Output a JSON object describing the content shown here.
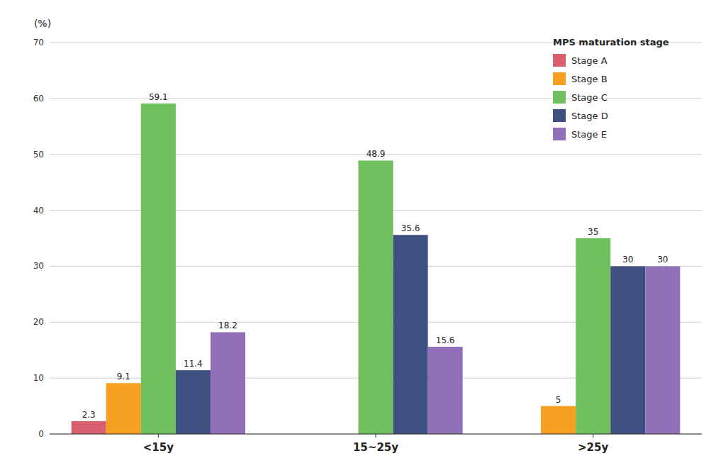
{
  "chart_data": {
    "type": "bar",
    "ylabel": "(%)",
    "legend_title": "MPS maturation stage",
    "categories": [
      "<15y",
      "15~25y",
      ">25y"
    ],
    "series": [
      {
        "name": "Stage A",
        "color": "#d75f6e",
        "values": [
          2.3,
          0,
          0
        ]
      },
      {
        "name": "Stage B",
        "color": "#f5a020",
        "values": [
          9.1,
          0,
          5
        ]
      },
      {
        "name": "Stage C",
        "color": "#70c060",
        "values": [
          59.1,
          48.9,
          35
        ]
      },
      {
        "name": "Stage D",
        "color": "#3d5080",
        "values": [
          11.4,
          35.6,
          30
        ]
      },
      {
        "name": "Stage E",
        "color": "#9070b8",
        "values": [
          18.2,
          15.6,
          30
        ]
      }
    ],
    "ylim": [
      0,
      70
    ],
    "yticks": [
      0,
      10,
      20,
      30,
      40,
      50,
      60,
      70
    ],
    "grid": true,
    "legend": "upper right",
    "data_labels": true
  }
}
